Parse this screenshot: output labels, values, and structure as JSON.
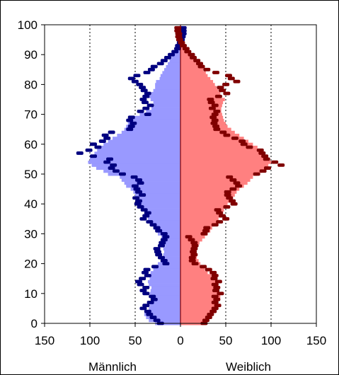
{
  "chart_data": {
    "type": "population-pyramid",
    "series": [
      {
        "name": "Männlich"
      },
      {
        "name": "Weiblich"
      }
    ],
    "x_label_left": "Männlich",
    "x_label_right": "Weiblich",
    "x_ticks": [
      150,
      100,
      50,
      0,
      50,
      100,
      150
    ],
    "xlim": [
      -150,
      150
    ],
    "y_ticks": [
      0,
      10,
      20,
      30,
      40,
      50,
      60,
      70,
      80,
      90,
      100
    ],
    "ylim": [
      0,
      100
    ],
    "grid": "vertical dotted at 100 and 50 on both sides",
    "colors": {
      "male_fill": "#9999FF",
      "male_dark": "#000080",
      "female_fill": "#FF8080",
      "female_dark": "#800000",
      "center_line": "#800000"
    },
    "male_fill_values": [
      28,
      35,
      38,
      40,
      37,
      35,
      34,
      33,
      31,
      33,
      34,
      33,
      32,
      35,
      36,
      34,
      37,
      33,
      30,
      28,
      25,
      22,
      20,
      19,
      18,
      19,
      17,
      18,
      19,
      21,
      25,
      27,
      30,
      33,
      35,
      36,
      38,
      39,
      40,
      42,
      45,
      47,
      49,
      50,
      52,
      55,
      60,
      62,
      65,
      67,
      80,
      85,
      93,
      98,
      102,
      100,
      99,
      95,
      92,
      88,
      85,
      80,
      75,
      70,
      65,
      62,
      60,
      58,
      55,
      52,
      45,
      38,
      32,
      29,
      30,
      33,
      35,
      32,
      30,
      28,
      28,
      27,
      23,
      22,
      20,
      18,
      16,
      14,
      12,
      10,
      9,
      8,
      6,
      5,
      4,
      3,
      2,
      1,
      1,
      1,
      0
    ],
    "male_dark_values": [
      26,
      30,
      34,
      38,
      40,
      45,
      42,
      37,
      33,
      35,
      42,
      45,
      42,
      48,
      50,
      46,
      40,
      43,
      41,
      32,
      20,
      22,
      25,
      28,
      29,
      30,
      25,
      24,
      22,
      20,
      22,
      28,
      30,
      34,
      38,
      45,
      42,
      40,
      44,
      48,
      51,
      50,
      53,
      46,
      50,
      52,
      54,
      48,
      50,
      55,
      68,
      75,
      80,
      78,
      85,
      82,
      100,
      115,
      105,
      95,
      100,
      90,
      85,
      87,
      80,
      60,
      58,
      56,
      60,
      58,
      40,
      48,
      42,
      37,
      43,
      45,
      42,
      40,
      44,
      46,
      49,
      54,
      58,
      52,
      41,
      36,
      33,
      26,
      22,
      18,
      14,
      10,
      7,
      6,
      4,
      3,
      2,
      1,
      1,
      1,
      0
    ],
    "female_fill_values": [
      28,
      30,
      33,
      35,
      38,
      40,
      42,
      41,
      42,
      44,
      43,
      41,
      40,
      42,
      39,
      37,
      34,
      30,
      27,
      24,
      22,
      20,
      18,
      16,
      15,
      16,
      18,
      21,
      24,
      27,
      30,
      33,
      35,
      37,
      40,
      42,
      44,
      45,
      48,
      50,
      52,
      55,
      58,
      60,
      62,
      65,
      70,
      74,
      77,
      80,
      85,
      90,
      93,
      97,
      100,
      95,
      92,
      90,
      88,
      85,
      80,
      75,
      70,
      65,
      60,
      56,
      52,
      50,
      48,
      47,
      46,
      45,
      45,
      46,
      47,
      49,
      44,
      44,
      42,
      40,
      38,
      36,
      33,
      30,
      28,
      25,
      22,
      18,
      15,
      12,
      10,
      8,
      6,
      4,
      3,
      2,
      1,
      1,
      0,
      0,
      0
    ],
    "female_dark_values": [
      30,
      32,
      35,
      37,
      40,
      42,
      45,
      42,
      44,
      42,
      48,
      43,
      44,
      42,
      46,
      41,
      42,
      40,
      35,
      29,
      20,
      17,
      17,
      19,
      18,
      19,
      20,
      19,
      16,
      13,
      30,
      32,
      33,
      42,
      47,
      54,
      50,
      47,
      45,
      55,
      63,
      61,
      58,
      56,
      56,
      62,
      68,
      66,
      62,
      58,
      88,
      95,
      100,
      115,
      108,
      99,
      97,
      94,
      92,
      80,
      74,
      72,
      64,
      55,
      51,
      44,
      43,
      41,
      42,
      40,
      42,
      44,
      39,
      42,
      38,
      37,
      46,
      55,
      50,
      48,
      54,
      66,
      60,
      57,
      43,
      33,
      27,
      25,
      22,
      18,
      16,
      12,
      10,
      7,
      5,
      3,
      2,
      2,
      1,
      1,
      0
    ]
  }
}
